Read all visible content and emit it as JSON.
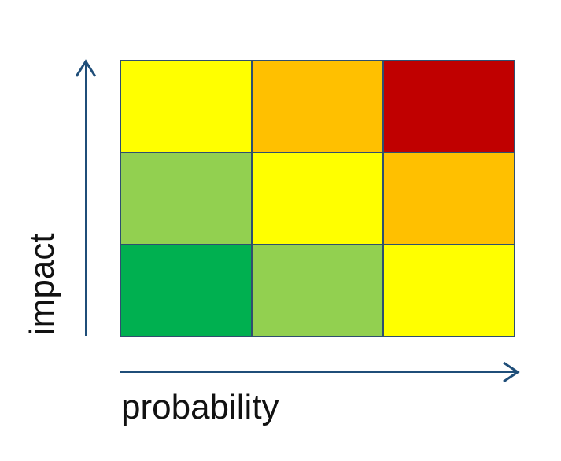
{
  "axes": {
    "x_label": "probability",
    "y_label": "impact",
    "arrow_color": "#1f4e79"
  },
  "matrix": {
    "rows": 3,
    "cols": 3,
    "grid_line_color": "#2f4f6f",
    "cells": [
      [
        "#ffff00",
        "#ffc000",
        "#c00000"
      ],
      [
        "#92d050",
        "#ffff00",
        "#ffc000"
      ],
      [
        "#00b050",
        "#92d050",
        "#ffff00"
      ]
    ]
  }
}
